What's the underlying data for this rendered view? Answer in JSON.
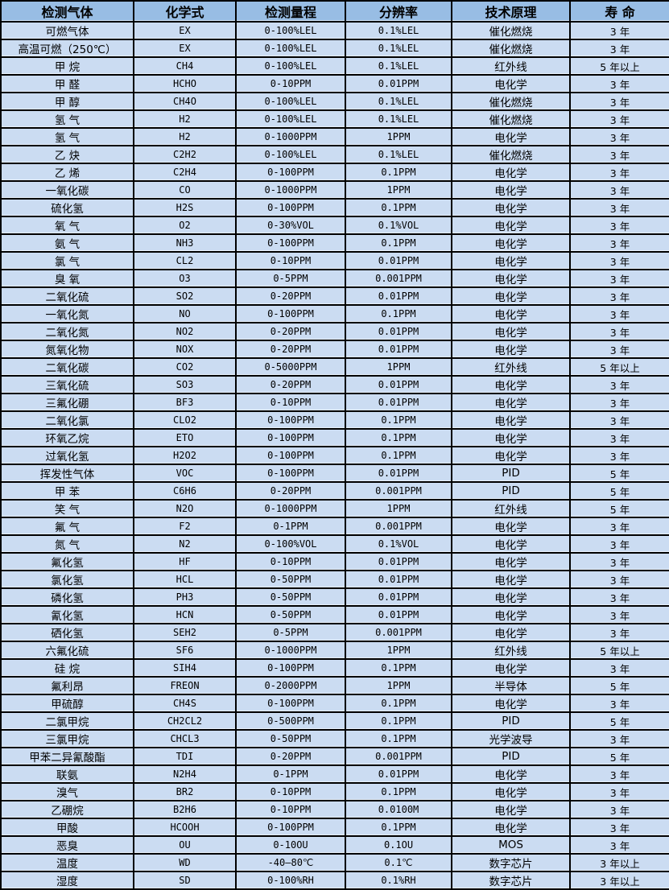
{
  "colors": {
    "header_bg": "#98bde4",
    "row_bg": "#cbdcf2",
    "border_color": "#000000",
    "text_color": "#000000"
  },
  "table": {
    "headers": [
      "检测气体",
      "化学式",
      "检测量程",
      "分辨率",
      "技术原理",
      "寿 命"
    ],
    "rows": [
      [
        "可燃气体",
        "EX",
        "0-100%LEL",
        "0.1%LEL",
        "催化燃烧",
        "3 年"
      ],
      [
        "高温可燃（250℃）",
        "EX",
        "0-100%LEL",
        "0.1%LEL",
        "催化燃烧",
        "3 年"
      ],
      [
        "甲 烷",
        "CH4",
        "0-100%LEL",
        "0.1%LEL",
        "红外线",
        "5 年以上"
      ],
      [
        "甲 醛",
        "HCHO",
        "0-10PPM",
        "0.01PPM",
        "电化学",
        "3 年"
      ],
      [
        "甲 醇",
        "CH4O",
        "0-100%LEL",
        "0.1%LEL",
        "催化燃烧",
        "3 年"
      ],
      [
        "氢 气",
        "H2",
        "0-100%LEL",
        "0.1%LEL",
        "催化燃烧",
        "3 年"
      ],
      [
        "氢 气",
        "H2",
        "0-1000PPM",
        "1PPM",
        "电化学",
        "3 年"
      ],
      [
        "乙 炔",
        "C2H2",
        "0-100%LEL",
        "0.1%LEL",
        "催化燃烧",
        "3 年"
      ],
      [
        "乙 烯",
        "C2H4",
        "0-100PPM",
        "0.1PPM",
        "电化学",
        "3 年"
      ],
      [
        "一氧化碳",
        "CO",
        "0-1000PPM",
        "1PPM",
        "电化学",
        "3 年"
      ],
      [
        "硫化氢",
        "H2S",
        "0-100PPM",
        "0.1PPM",
        "电化学",
        "3 年"
      ],
      [
        "氧 气",
        "O2",
        "0-30%VOL",
        "0.1%VOL",
        "电化学",
        "3 年"
      ],
      [
        "氨 气",
        "NH3",
        "0-100PPM",
        "0.1PPM",
        "电化学",
        "3 年"
      ],
      [
        "氯 气",
        "CL2",
        "0-10PPM",
        "0.01PPM",
        "电化学",
        "3 年"
      ],
      [
        "臭 氧",
        "O3",
        "0-5PPM",
        "0.001PPM",
        "电化学",
        "3 年"
      ],
      [
        "二氧化硫",
        "SO2",
        "0-20PPM",
        "0.01PPM",
        "电化学",
        "3 年"
      ],
      [
        "一氧化氮",
        "NO",
        "0-100PPM",
        "0.1PPM",
        "电化学",
        "3 年"
      ],
      [
        "二氧化氮",
        "NO2",
        "0-20PPM",
        "0.01PPM",
        "电化学",
        "3 年"
      ],
      [
        "氮氧化物",
        "NOX",
        "0-20PPM",
        "0.01PPM",
        "电化学",
        "3 年"
      ],
      [
        "二氧化碳",
        "CO2",
        "0-5000PPM",
        "1PPM",
        "红外线",
        "5 年以上"
      ],
      [
        "三氧化硫",
        "SO3",
        "0-20PPM",
        "0.01PPM",
        "电化学",
        "3 年"
      ],
      [
        "三氟化硼",
        "BF3",
        "0-10PPM",
        "0.01PPM",
        "电化学",
        "3 年"
      ],
      [
        "二氧化氯",
        "CLO2",
        "0-100PPM",
        "0.1PPM",
        "电化学",
        "3 年"
      ],
      [
        "环氧乙烷",
        "ETO",
        "0-100PPM",
        "0.1PPM",
        "电化学",
        "3 年"
      ],
      [
        "过氧化氢",
        "H2O2",
        "0-100PPM",
        "0.1PPM",
        "电化学",
        "3 年"
      ],
      [
        "挥发性气体",
        "VOC",
        "0-100PPM",
        "0.01PPM",
        "PID",
        "5 年"
      ],
      [
        "甲 苯",
        "C6H6",
        "0-20PPM",
        "0.001PPM",
        "PID",
        "5 年"
      ],
      [
        "笑 气",
        "N2O",
        "0-1000PPM",
        "1PPM",
        "红外线",
        "5 年"
      ],
      [
        "氟 气",
        "F2",
        "0-1PPM",
        "0.001PPM",
        "电化学",
        "3 年"
      ],
      [
        "氮 气",
        "N2",
        "0-100%VOL",
        "0.1%VOL",
        "电化学",
        "3 年"
      ],
      [
        "氟化氢",
        "HF",
        "0-10PPM",
        "0.01PPM",
        "电化学",
        "3 年"
      ],
      [
        "氯化氢",
        "HCL",
        "0-50PPM",
        "0.01PPM",
        "电化学",
        "3 年"
      ],
      [
        "磷化氢",
        "PH3",
        "0-50PPM",
        "0.01PPM",
        "电化学",
        "3 年"
      ],
      [
        "氰化氢",
        "HCN",
        "0-50PPM",
        "0.01PPM",
        "电化学",
        "3 年"
      ],
      [
        "硒化氢",
        "SEH2",
        "0-5PPM",
        "0.001PPM",
        "电化学",
        "3 年"
      ],
      [
        "六氟化硫",
        "SF6",
        "0-1000PPM",
        "1PPM",
        "红外线",
        "5 年以上"
      ],
      [
        "硅 烷",
        "SIH4",
        "0-100PPM",
        "0.1PPM",
        "电化学",
        "3 年"
      ],
      [
        "氟利昂",
        "FREON",
        "0-2000PPM",
        "1PPM",
        "半导体",
        "5 年"
      ],
      [
        "甲硫醇",
        "CH4S",
        "0-100PPM",
        "0.1PPM",
        "电化学",
        "3 年"
      ],
      [
        "二氯甲烷",
        "CH2CL2",
        "0-500PPM",
        "0.1PPM",
        "PID",
        "5 年"
      ],
      [
        "三氯甲烷",
        "CHCL3",
        "0-50PPM",
        "0.1PPM",
        "光学波导",
        "3 年"
      ],
      [
        "甲苯二异氰酸酯",
        "TDI",
        "0-20PPM",
        "0.001PPM",
        "PID",
        "5 年"
      ],
      [
        "联氨",
        "N2H4",
        "0-1PPM",
        "0.01PPM",
        "电化学",
        "3 年"
      ],
      [
        "溴气",
        "BR2",
        "0-10PPM",
        "0.1PPM",
        "电化学",
        "3 年"
      ],
      [
        "乙硼烷",
        "B2H6",
        "0-10PPM",
        "0.0100M",
        "电化学",
        "3 年"
      ],
      [
        "甲酸",
        "HCOOH",
        "0-100PPM",
        "0.1PPM",
        "电化学",
        "3 年"
      ],
      [
        "恶臭",
        "OU",
        "0-10OU",
        "0.1OU",
        "MOS",
        "3 年"
      ],
      [
        "温度",
        "WD",
        "-40—80℃",
        "0.1℃",
        "数字芯片",
        "3 年以上"
      ],
      [
        "湿度",
        "SD",
        "0-100%RH",
        "0.1%RH",
        "数字芯片",
        "3 年以上"
      ]
    ]
  }
}
